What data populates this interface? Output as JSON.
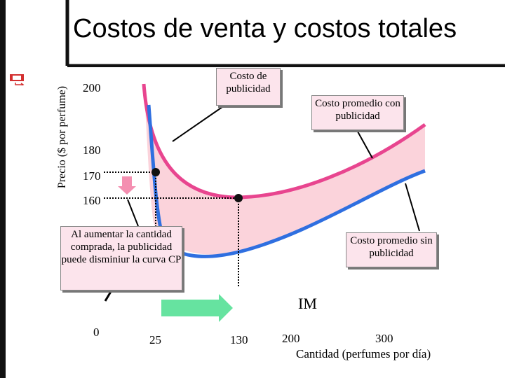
{
  "title": "Costos de venta y costos totales",
  "chart_data": {
    "type": "line",
    "ylabel": "Precio ($ por perfume)",
    "xlabel": "Cantidad (perfumes por día)",
    "y_ticks": [
      "200",
      "180",
      "170",
      "160"
    ],
    "x_ticks": [
      "0",
      "25",
      "130",
      "200",
      "300"
    ],
    "series": [
      {
        "name": "Costo promedio con publicidad",
        "color": "#e8458f"
      },
      {
        "name": "Costo promedio sin publicidad",
        "color": "#2f6fe0"
      }
    ],
    "points": [
      {
        "x": 25,
        "y": 170
      },
      {
        "x": 130,
        "y": 160
      }
    ],
    "annotations": {
      "costo_publicidad": "Costo de publicidad",
      "con_publicidad": "Costo promedio con publicidad",
      "sin_publicidad": "Costo promedio sin publicidad",
      "nota": "Al aumentar la cantidad comprada, la publicidad puede disminiur la curva CP",
      "im": "IM"
    },
    "colors": {
      "fill_between": "#fbd3db",
      "arrow_up": "#f48fb1",
      "arrow_right": "#66e3a0"
    }
  }
}
